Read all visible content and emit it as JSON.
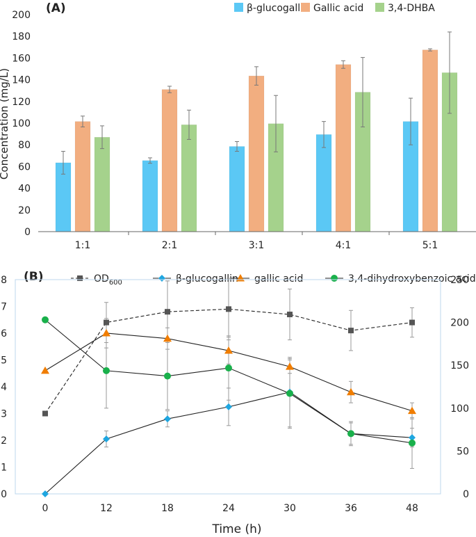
{
  "chart_data": [
    {
      "type": "bar",
      "panel_label": "(A)",
      "ylabel": "Concentration (mg/L)",
      "ylim": [
        0,
        200
      ],
      "yticks": [
        "0",
        "20",
        "40",
        "60",
        "80",
        "100",
        "120",
        "140",
        "160",
        "180",
        "200"
      ],
      "categories": [
        "1:1",
        "2:1",
        "3:1",
        "4:1",
        "5:1"
      ],
      "legend_position": "top-right",
      "series": [
        {
          "name": "β-glucogallin",
          "color": "#5bc8f5",
          "values": [
            63.5,
            65.5,
            78.5,
            89.5,
            101.5
          ],
          "errors": [
            10.5,
            2.5,
            4.5,
            12,
            21.5
          ]
        },
        {
          "name": "Gallic acid",
          "color": "#f2ae80",
          "values": [
            101.5,
            131,
            143.5,
            154,
            167.5
          ],
          "errors": [
            5,
            3,
            8.5,
            3.5,
            1
          ]
        },
        {
          "name": "3,4-DHBA",
          "color": "#a5d28c",
          "values": [
            87,
            98.5,
            99.5,
            128.5,
            146.5
          ],
          "errors": [
            10.5,
            13.5,
            26,
            32,
            37.5
          ]
        }
      ]
    },
    {
      "type": "line",
      "panel_label": "(B)",
      "xlabel": "Time (h)",
      "x": [
        0,
        12,
        18,
        24,
        30,
        36,
        48
      ],
      "xticks": [
        "0",
        "12",
        "18",
        "24",
        "30",
        "36",
        "48"
      ],
      "yleft_ticks": [
        "0",
        "1",
        "2",
        "3",
        "4",
        "5",
        "6",
        "7",
        "8"
      ],
      "yright_ticks": [
        "0",
        "50",
        "100",
        "150",
        "200",
        "250"
      ],
      "ylim_left": [
        0,
        8
      ],
      "ylim_right": [
        0,
        250
      ],
      "legend_position": "top",
      "series": [
        {
          "name": "OD",
          "subscript": "600",
          "axis": "left",
          "marker": "square",
          "line": "dashed",
          "color": "#555555",
          "values": [
            3.0,
            6.4,
            6.8,
            6.9,
            6.7,
            6.1,
            6.4
          ],
          "errors": [
            0,
            0.75,
            1.15,
            1.15,
            0.95,
            0.75,
            0.55
          ]
        },
        {
          "name": "β-glucogallin",
          "axis": "left",
          "marker": "diamond",
          "line": "solid",
          "color": "#1fa6e0",
          "values": [
            0.0,
            2.05,
            2.8,
            3.25,
            3.8,
            2.25,
            2.1
          ],
          "errors": [
            0,
            0.3,
            0.3,
            0.7,
            1.3,
            0.4,
            0.35
          ]
        },
        {
          "name": "gallic acid",
          "axis": "left",
          "marker": "triangle",
          "line": "solid",
          "color": "#f07d00",
          "values": [
            4.6,
            6.0,
            5.8,
            5.35,
            4.75,
            3.8,
            3.1
          ],
          "errors": [
            0,
            0.55,
            0.4,
            0.5,
            0.25,
            0.4,
            0.3
          ]
        },
        {
          "name": "3,4-dihydroxybenzoic acid",
          "axis": "left",
          "marker": "circle",
          "line": "solid",
          "color": "#19b04b",
          "values": [
            6.5,
            4.6,
            4.4,
            4.7,
            3.75,
            2.25,
            1.9
          ],
          "errors": [
            0,
            1.4,
            1.25,
            1.2,
            1.3,
            0.45,
            0.95
          ]
        }
      ]
    }
  ]
}
